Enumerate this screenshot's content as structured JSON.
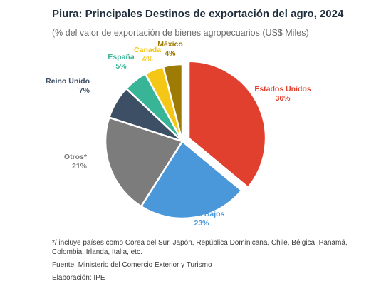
{
  "chart_data": {
    "type": "pie",
    "title": "Piura: Principales Destinos de exportación del agro, 2024",
    "subtitle": "(% del valor de exportación de bienes agropecuarios (US$ Miles)",
    "slices": [
      {
        "name": "Estados Unidos",
        "value": 36,
        "label": "36%",
        "color": "#e2402f"
      },
      {
        "name": "Países Bajos",
        "value": 23,
        "label": "23%",
        "color": "#4a97d9"
      },
      {
        "name": "Otros*",
        "value": 21,
        "label": "21%",
        "color": "#7c7c7c"
      },
      {
        "name": "Reino Unido",
        "value": 7,
        "label": "7%",
        "color": "#3d4f64"
      },
      {
        "name": "España",
        "value": 5,
        "label": "5%",
        "color": "#38b497"
      },
      {
        "name": "Canada",
        "value": 4,
        "label": "4%",
        "color": "#f4c615"
      },
      {
        "name": "México",
        "value": 4,
        "label": "4%",
        "color": "#9d7b05"
      }
    ]
  },
  "footnote": "*/ incluye países como Corea del Sur, Japón, República Dominicana, Chile, Bélgica, Panamá, Colombia, Irlanda, Italia, etc.",
  "source": "Fuente: Ministerio del Comercio Exterior y Turismo",
  "credit": "Elaboración: IPE"
}
